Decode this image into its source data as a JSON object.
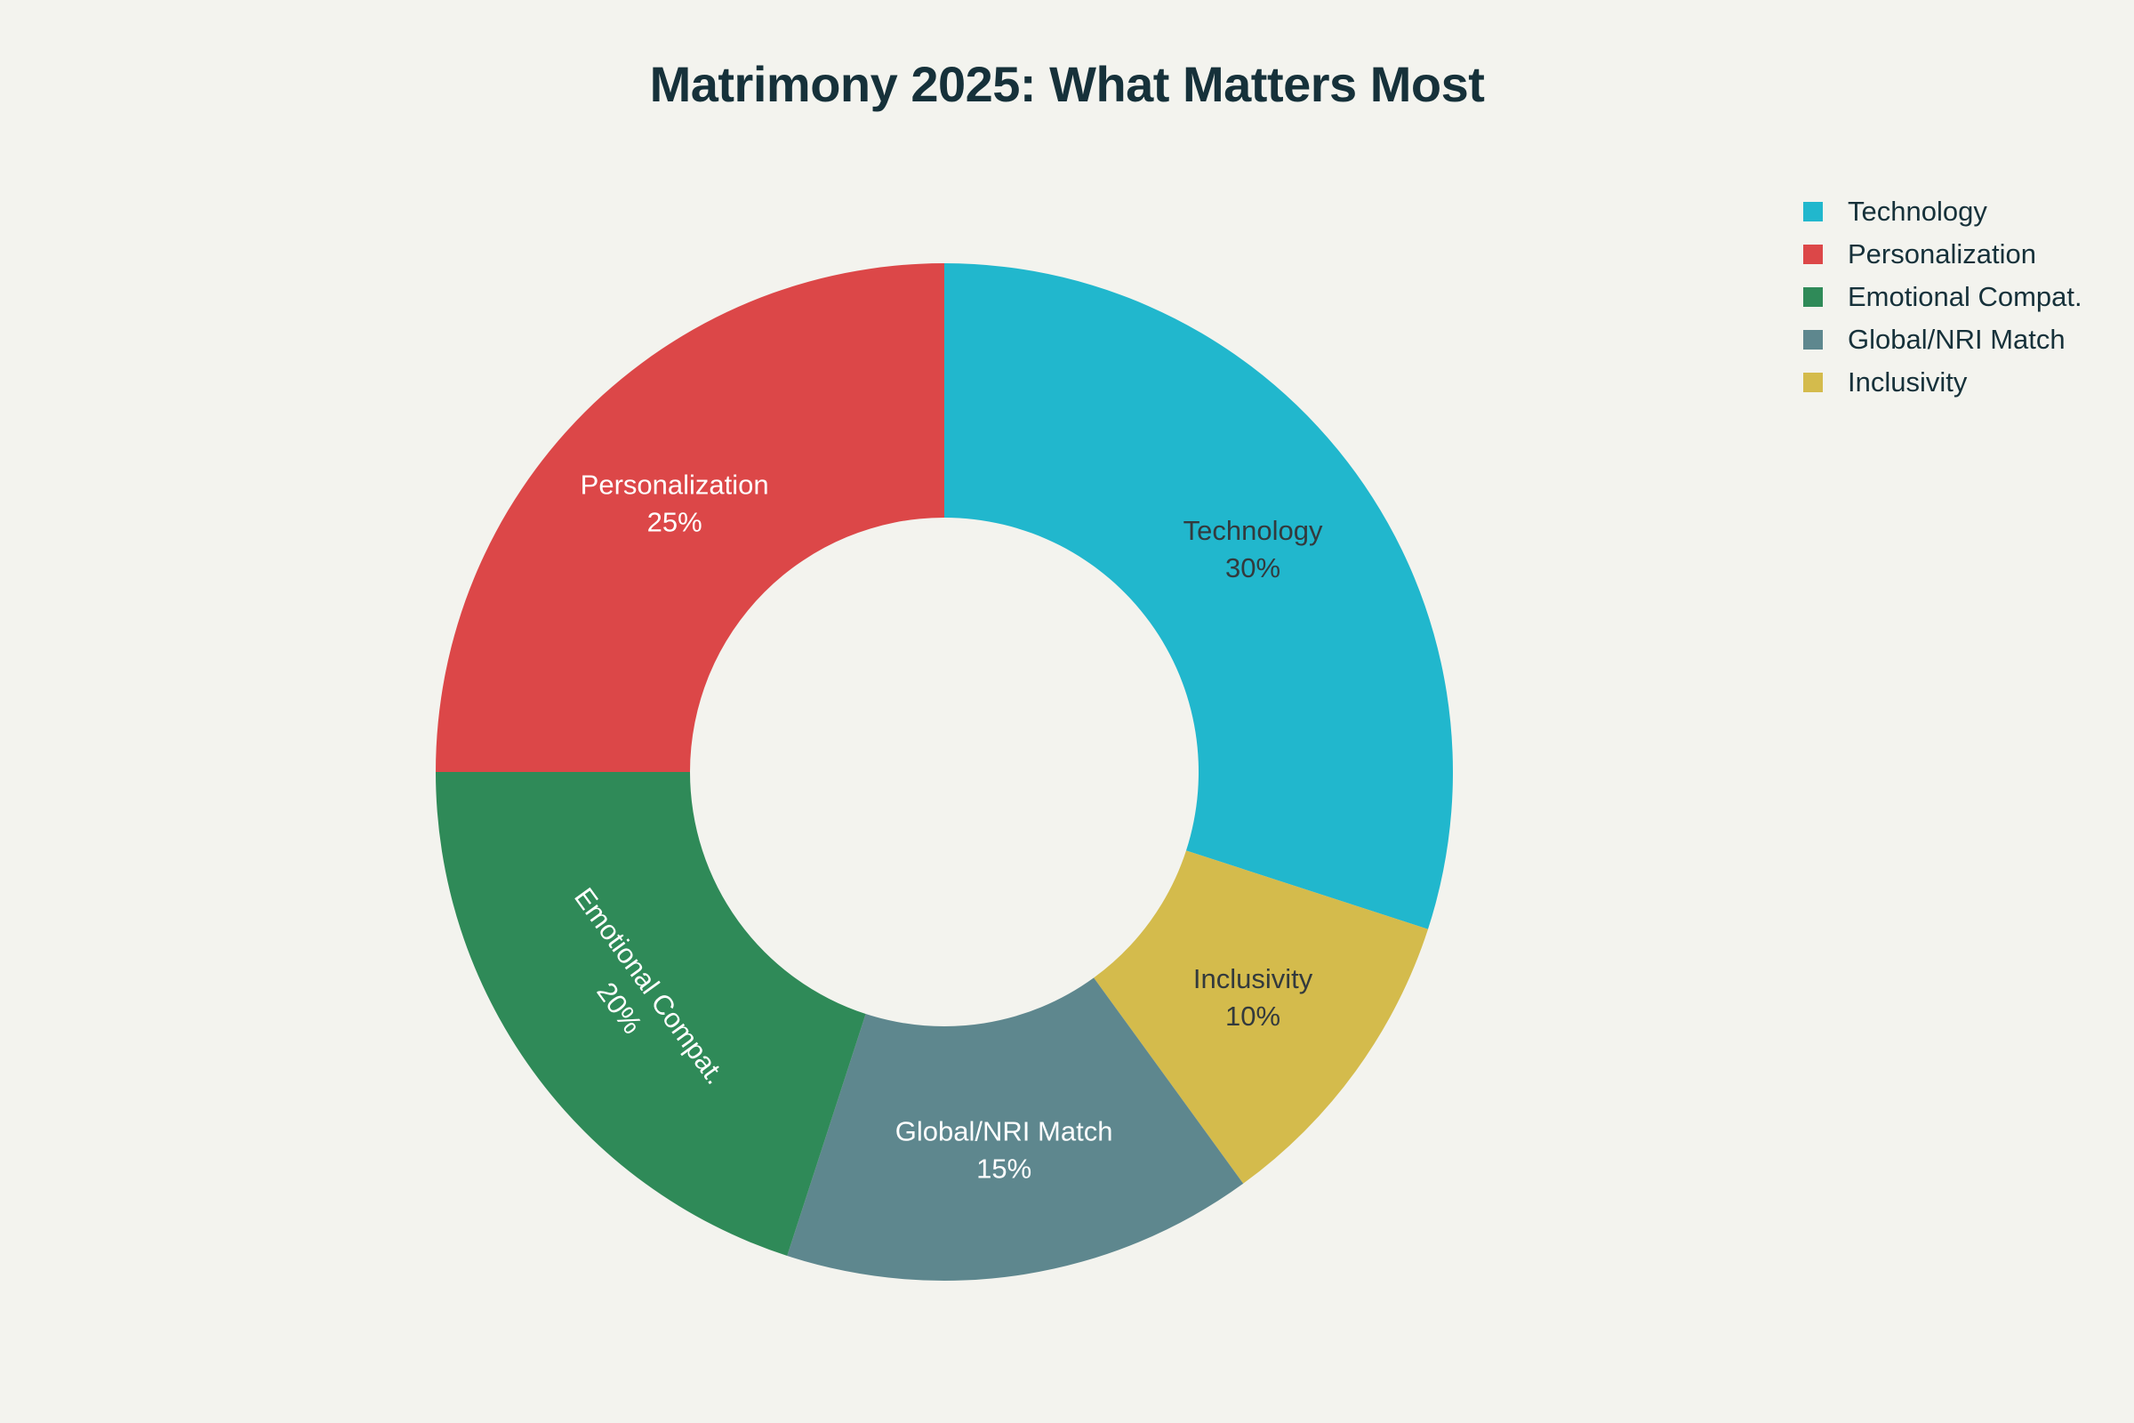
{
  "chart_data": {
    "type": "pie",
    "hole": 0.5,
    "title": "Matrimony 2025: What Matters Most",
    "legend_position": "top-right",
    "slices": [
      {
        "label": "Technology",
        "value": 30,
        "percent_label": "30%",
        "color": "#21b7cd",
        "text_color": "#333a3d"
      },
      {
        "label": "Inclusivity",
        "value": 10,
        "percent_label": "10%",
        "color": "#d4bb4c",
        "text_color": "#333a3d"
      },
      {
        "label": "Global/NRI Match",
        "value": 15,
        "percent_label": "15%",
        "color": "#5e878e",
        "text_color": "#ffffff"
      },
      {
        "label": "Emotional Compat.",
        "value": 20,
        "percent_label": "20%",
        "color": "#2f8a58",
        "text_color": "#ffffff"
      },
      {
        "label": "Personalization",
        "value": 25,
        "percent_label": "25%",
        "color": "#dc4748",
        "text_color": "#ffffff"
      }
    ],
    "legend": [
      {
        "label": "Technology",
        "color": "#21b7cd"
      },
      {
        "label": "Personalization",
        "color": "#dc4748"
      },
      {
        "label": "Emotional Compat.",
        "color": "#2f8a58"
      },
      {
        "label": "Global/NRI Match",
        "color": "#5e878e"
      },
      {
        "label": "Inclusivity",
        "color": "#d4bb4c"
      }
    ]
  }
}
